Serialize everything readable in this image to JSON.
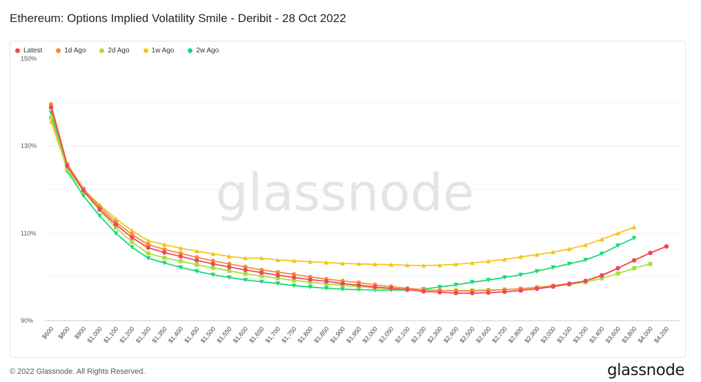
{
  "title": "Ethereum: Options Implied Volatility Smile - Deribit - 28 Oct 2022",
  "footer": "© 2022 Glassnode. All Rights Reserved.",
  "logo": "glassnode",
  "watermark": "glassnode",
  "chart_data": {
    "type": "line",
    "title": "Ethereum: Options Implied Volatility Smile - Deribit - 28 Oct 2022",
    "xlabel": "",
    "ylabel": "",
    "ylim": [
      90,
      150
    ],
    "yticks": [
      90,
      110,
      130,
      150
    ],
    "ytick_labels": [
      "90%",
      "110%",
      "130%",
      "150%"
    ],
    "grid": true,
    "legend_position": "top-left",
    "categories": [
      "$600",
      "$800",
      "$900",
      "$1,000",
      "$1,100",
      "$1,200",
      "$1,300",
      "$1,350",
      "$1,400",
      "$1,450",
      "$1,500",
      "$1,550",
      "$1,600",
      "$1,650",
      "$1,700",
      "$1,750",
      "$1,800",
      "$1,850",
      "$1,900",
      "$1,950",
      "$2,000",
      "$2,050",
      "$2,100",
      "$2,200",
      "$2,300",
      "$2,400",
      "$2,500",
      "$2,600",
      "$2,700",
      "$2,800",
      "$2,900",
      "$3,000",
      "$3,100",
      "$3,200",
      "$3,400",
      "$3,600",
      "$3,800",
      "$4,000",
      "$4,200"
    ],
    "series": [
      {
        "name": "Latest",
        "color": "#f0465a",
        "marker": "circle",
        "values": [
          138.8,
          125.4,
          119.8,
          115.5,
          112.0,
          109.0,
          106.7,
          105.6,
          104.7,
          103.8,
          103.0,
          102.3,
          101.6,
          101.0,
          100.4,
          99.9,
          99.4,
          99.0,
          98.5,
          98.1,
          97.7,
          97.4,
          97.1,
          96.7,
          96.5,
          96.3,
          96.3,
          96.4,
          96.6,
          96.9,
          97.3,
          97.8,
          98.4,
          99.1,
          100.3,
          102.0,
          103.8,
          105.5,
          107.0
        ]
      },
      {
        "name": "1d Ago",
        "color": "#f58a3c",
        "marker": "circle",
        "values": [
          139.5,
          125.8,
          120.2,
          116.1,
          112.6,
          109.7,
          107.4,
          106.3,
          105.4,
          104.5,
          103.7,
          103.0,
          102.3,
          101.6,
          101.1,
          100.6,
          100.0,
          99.5,
          99.1,
          98.7,
          98.2,
          97.8,
          97.4,
          97.1,
          96.9,
          96.8,
          96.8,
          96.9,
          97.1,
          97.3,
          97.6,
          98.0,
          98.5,
          99.1,
          100.4,
          102.0,
          103.8,
          105.5,
          107.0
        ]
      },
      {
        "name": "2d Ago",
        "color": "#a6e23c",
        "marker": "square",
        "values": [
          136.5,
          124.6,
          119.6,
          115.3,
          111.3,
          108.0,
          105.4,
          104.4,
          103.6,
          102.8,
          102.1,
          101.4,
          100.7,
          100.2,
          99.7,
          99.2,
          98.8,
          98.4,
          98.1,
          97.8,
          97.5,
          97.3,
          97.1,
          97.0,
          96.9,
          96.9,
          96.9,
          97.0,
          97.1,
          97.3,
          97.6,
          97.9,
          98.3,
          98.8,
          99.7,
          100.8,
          102.0,
          103.0,
          null
        ]
      },
      {
        "name": "1w Ago",
        "color": "#f5c518",
        "marker": "triangle-up",
        "values": [
          135.6,
          124.7,
          120.0,
          116.5,
          113.3,
          110.6,
          108.3,
          107.4,
          106.6,
          105.9,
          105.3,
          104.7,
          104.3,
          104.3,
          103.9,
          103.7,
          103.5,
          103.3,
          103.1,
          103.0,
          102.9,
          102.8,
          102.7,
          102.6,
          102.7,
          102.9,
          103.2,
          103.6,
          104.0,
          104.6,
          105.1,
          105.7,
          106.4,
          107.3,
          108.6,
          110.0,
          111.4,
          null,
          null
        ]
      },
      {
        "name": "2w Ago",
        "color": "#19d87a",
        "marker": "triangle-down",
        "values": [
          137.6,
          124.2,
          118.6,
          114.0,
          110.0,
          106.8,
          104.3,
          103.2,
          102.2,
          101.3,
          100.5,
          99.9,
          99.3,
          98.9,
          98.5,
          98.0,
          97.7,
          97.4,
          97.2,
          97.1,
          97.0,
          97.0,
          97.0,
          97.2,
          97.7,
          98.2,
          98.8,
          99.3,
          99.9,
          100.5,
          101.3,
          102.2,
          103.0,
          103.9,
          105.3,
          107.2,
          108.9,
          null,
          null
        ]
      }
    ]
  }
}
